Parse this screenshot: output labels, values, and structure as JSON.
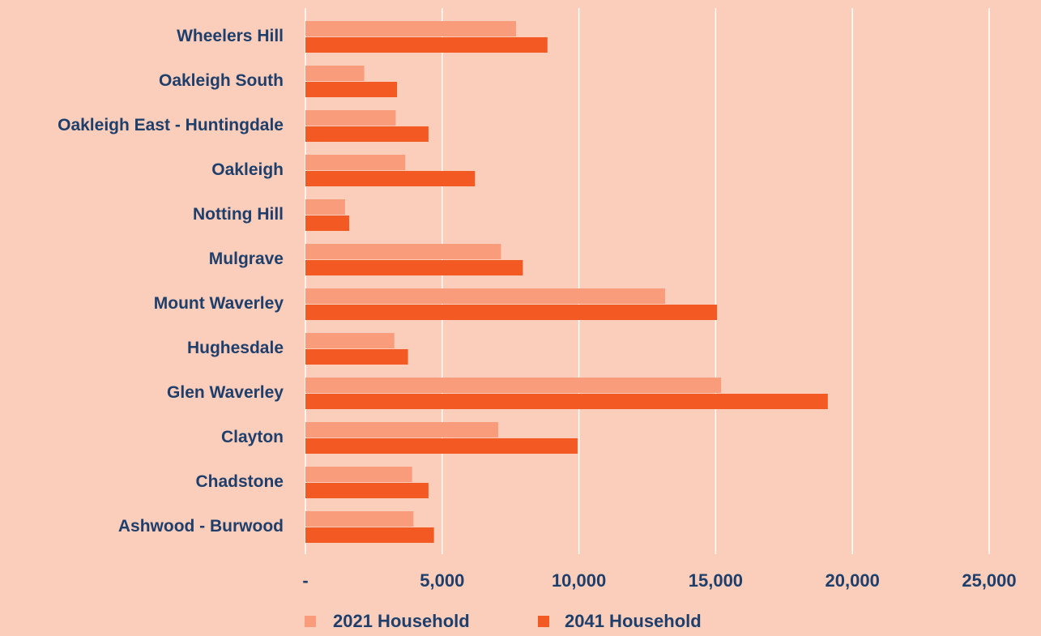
{
  "chart_data": {
    "type": "bar",
    "orientation": "horizontal",
    "categories": [
      "Wheelers Hill",
      "Oakleigh South",
      "Oakleigh East - Huntingdale",
      "Oakleigh",
      "Notting Hill",
      "Mulgrave",
      "Mount Waverley",
      "Hughesdale",
      "Glen Waverley",
      "Clayton",
      "Chadstone",
      "Ashwood - Burwood"
    ],
    "series": [
      {
        "name": "2021 Household",
        "color": "#f89c7c",
        "values": [
          7700,
          2150,
          3300,
          3650,
          1450,
          7150,
          13150,
          3250,
          15200,
          7050,
          3900,
          3950
        ]
      },
      {
        "name": "2041 Household",
        "color": "#f35a23",
        "values": [
          8850,
          3350,
          4500,
          6200,
          1600,
          7950,
          15050,
          3750,
          19100,
          9950,
          4500,
          4700
        ]
      }
    ],
    "xlim": [
      0,
      25000
    ],
    "xticks": [
      0,
      5000,
      10000,
      15000,
      20000,
      25000
    ],
    "xtick_labels": [
      "-",
      "5,000",
      "10,000",
      "15,000",
      "20,000",
      "25,000"
    ],
    "grid": "vertical",
    "legend_position": "bottom",
    "title": "",
    "xlabel": "",
    "ylabel": ""
  },
  "colors": {
    "background": "#fbcdbb",
    "label_text": "#1e3f6b",
    "gridline": "#ffffff"
  }
}
